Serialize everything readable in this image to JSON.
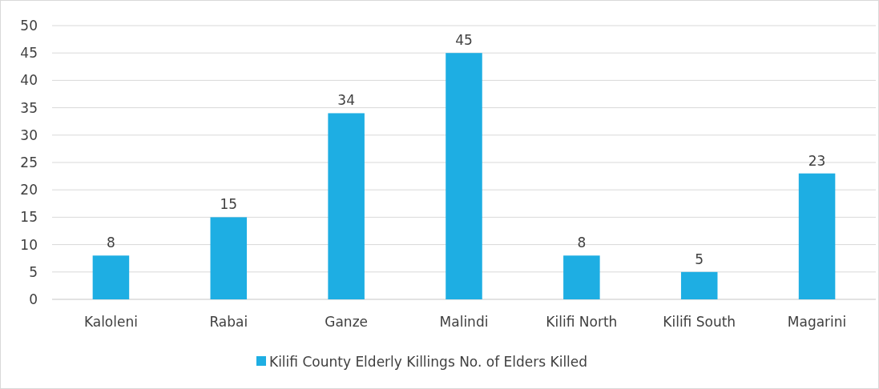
{
  "chart_data": {
    "type": "bar",
    "categories": [
      "Kaloleni",
      "Rabai",
      "Ganze",
      "Malindi",
      "Kilifi North",
      "Kilifi South",
      "Magarini"
    ],
    "series": [
      {
        "name": "Kilifi County Elderly Killings No. of Elders Killed",
        "color": "#1eaee3",
        "values": [
          8,
          15,
          34,
          45,
          8,
          5,
          23
        ]
      }
    ],
    "ylim": [
      0,
      50
    ],
    "yticks": [
      0,
      5,
      10,
      15,
      20,
      25,
      30,
      35,
      40,
      45,
      50
    ],
    "grid": "y",
    "legend": "bottom",
    "data_labels": true
  }
}
